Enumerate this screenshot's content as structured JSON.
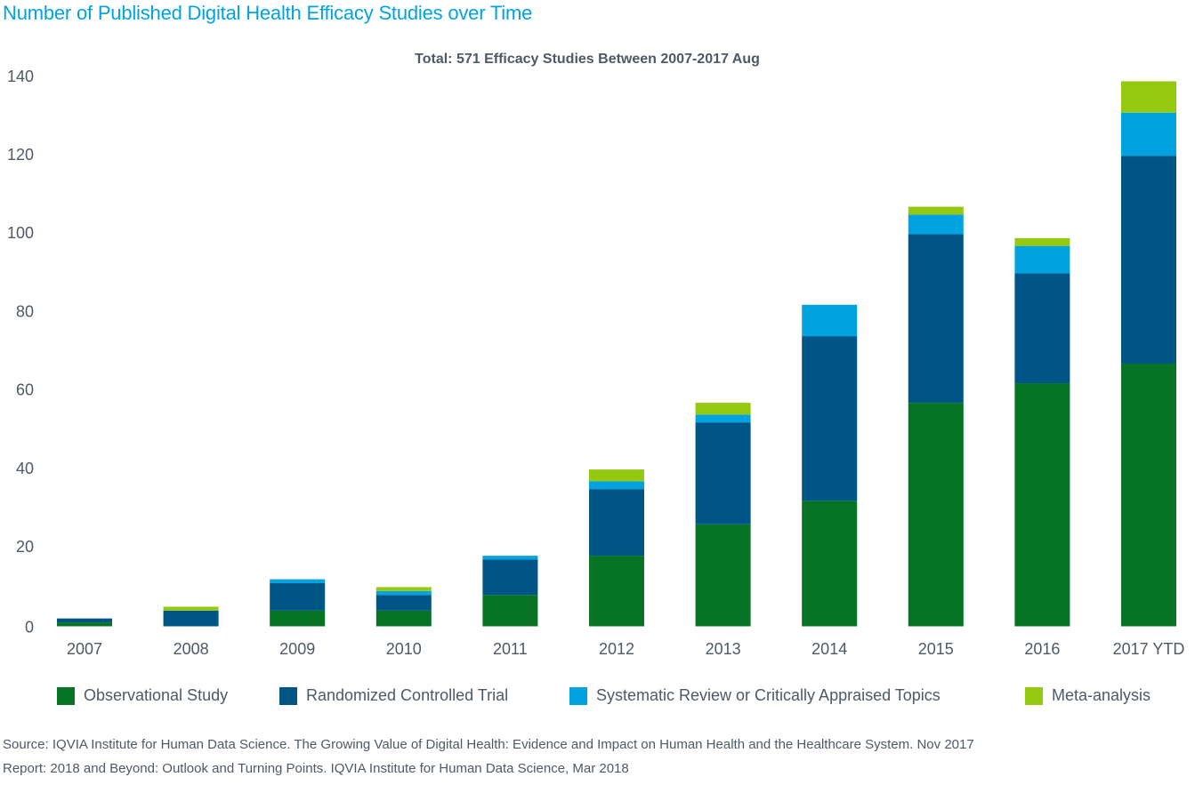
{
  "chart_data": {
    "type": "bar",
    "stacked": true,
    "title": "Number of Published Digital Health Efficacy Studies over Time",
    "subtitle": "Total: 571 Efficacy Studies Between 2007-2017 Aug",
    "xlabel": "",
    "ylabel": "",
    "ylim": [
      0,
      140
    ],
    "yticks": [
      0,
      20,
      40,
      60,
      80,
      100,
      120,
      140
    ],
    "grid": false,
    "legend_position": "bottom",
    "categories": [
      "2007",
      "2008",
      "2009",
      "2010",
      "2011",
      "2012",
      "2013",
      "2014",
      "2015",
      "2016",
      "2017 YTD"
    ],
    "series": [
      {
        "name": "Observational Study",
        "color": "#077324",
        "values": [
          1,
          0,
          4,
          4,
          8,
          18,
          26,
          32,
          57,
          62,
          67
        ]
      },
      {
        "name": "Randomized Controlled Trial",
        "color": "#005587",
        "values": [
          1,
          4,
          7,
          4,
          9,
          17,
          26,
          42,
          43,
          28,
          53
        ]
      },
      {
        "name": "Systematic Review or Critically Appraised Topics",
        "color": "#00a3e0",
        "values": [
          0,
          0,
          1,
          1,
          1,
          2,
          2,
          8,
          5,
          7,
          11
        ]
      },
      {
        "name": "Meta-analysis",
        "color": "#95c90f",
        "values": [
          0,
          1,
          0,
          1,
          0,
          3,
          3,
          0,
          2,
          2,
          8
        ]
      }
    ]
  },
  "footer": {
    "source": "Source: IQVIA Institute for Human Data Science. The Growing Value of Digital Health: Evidence and Impact on Human Health and the Healthcare System. Nov 2017",
    "report": "Report: 2018 and Beyond: Outlook and Turning Points. IQVIA Institute for Human Data Science, Mar 2018"
  }
}
